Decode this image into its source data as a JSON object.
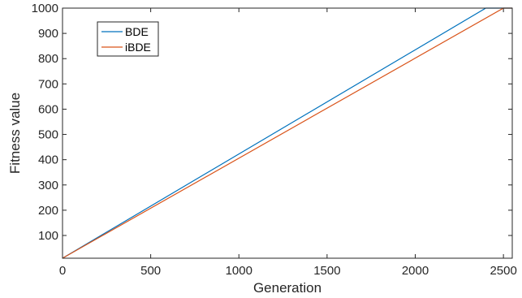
{
  "chart_data": {
    "type": "line",
    "title": "",
    "xlabel": "Generation",
    "ylabel": "Fitness value",
    "xlim": [
      0,
      2550
    ],
    "ylim": [
      10,
      1000
    ],
    "xticks": [
      0,
      500,
      1000,
      1500,
      2000,
      2500
    ],
    "yticks": [
      100,
      200,
      300,
      400,
      500,
      600,
      700,
      800,
      900,
      1000
    ],
    "grid": false,
    "legend_position": "top-left",
    "series": [
      {
        "name": "BDE",
        "color": "#0072BD",
        "x": [
          0,
          2400,
          2550
        ],
        "y": [
          10,
          1000,
          1000
        ]
      },
      {
        "name": "iBDE",
        "color": "#D95319",
        "x": [
          0,
          2500,
          2550
        ],
        "y": [
          10,
          1000,
          1000
        ]
      }
    ]
  }
}
